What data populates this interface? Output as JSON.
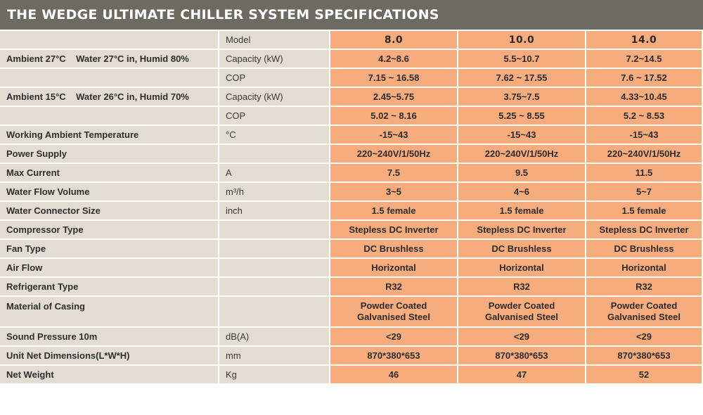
{
  "title": "THE WEDGE ULTIMATE CHILLER SYSTEM SPECIFICATIONS",
  "colors": {
    "title_bar": "#6b6b62",
    "label_bg": "#e2dcd3",
    "value_bg": "#f6ac7c"
  },
  "header": {
    "label": "",
    "unit": "Model",
    "models": [
      "8.0",
      "10.0",
      "14.0"
    ]
  },
  "rows": [
    {
      "label": "Ambient 27°C    Water 27°C in, Humid 80%",
      "unit": "Capacity (kW)",
      "values": [
        "4.2~8.6",
        "5.5~10.7",
        "7.2~14.5"
      ]
    },
    {
      "label": "",
      "unit": "COP",
      "values": [
        "7.15 ~ 16.58",
        "7.62 ~ 17.55",
        "7.6 ~ 17.52"
      ]
    },
    {
      "label": "Ambient 15°C    Water 26°C in, Humid 70%",
      "unit": "Capacity (kW)",
      "values": [
        "2.45~5.75",
        "3.75~7.5",
        "4.33~10.45"
      ]
    },
    {
      "label": "",
      "unit": "COP",
      "values": [
        "5.02 ~ 8.16",
        "5.25 ~ 8.55",
        "5.2 ~ 8.53"
      ]
    },
    {
      "label": "Working Ambient Temperature",
      "unit": "°C",
      "values": [
        "-15~43",
        "-15~43",
        "-15~43"
      ]
    },
    {
      "label": "Power Supply",
      "unit": "",
      "values": [
        "220~240V/1/50Hz",
        "220~240V/1/50Hz",
        "220~240V/1/50Hz"
      ]
    },
    {
      "label": "Max Current",
      "unit": "A",
      "values": [
        "7.5",
        "9.5",
        "11.5"
      ]
    },
    {
      "label": "Water Flow Volume",
      "unit": "m³/h",
      "values": [
        "3~5",
        "4~6",
        "5~7"
      ]
    },
    {
      "label": "Water Connector Size",
      "unit": "inch",
      "values": [
        "1.5 female",
        "1.5 female",
        "1.5 female"
      ]
    },
    {
      "label": "Compressor Type",
      "unit": "",
      "values": [
        "Stepless DC Inverter",
        "Stepless DC Inverter",
        "Stepless DC Inverter"
      ]
    },
    {
      "label": "Fan Type",
      "unit": "",
      "values": [
        "DC Brushless",
        "DC Brushless",
        "DC Brushless"
      ]
    },
    {
      "label": "Air Flow",
      "unit": "",
      "values": [
        "Horizontal",
        "Horizontal",
        "Horizontal"
      ]
    },
    {
      "label": "Refrigerant Type",
      "unit": "",
      "values": [
        "R32",
        "R32",
        "R32"
      ]
    },
    {
      "label": "Material of Casing",
      "unit": "",
      "values": [
        [
          "Powder Coated",
          "Galvanised Steel"
        ],
        [
          "Powder Coated",
          "Galvanised Steel"
        ],
        [
          "Powder Coated",
          "Galvanised Steel"
        ]
      ]
    },
    {
      "label": "Sound Pressure 10m",
      "unit": "dB(A)",
      "values": [
        "<29",
        "<29",
        "<29"
      ]
    },
    {
      "label": "Unit Net Dimensions(L*W*H)",
      "unit": "mm",
      "values": [
        "870*380*653",
        "870*380*653",
        "870*380*653"
      ]
    },
    {
      "label": "Net Weight",
      "unit": "Kg",
      "values": [
        "46",
        "47",
        "52"
      ]
    }
  ]
}
